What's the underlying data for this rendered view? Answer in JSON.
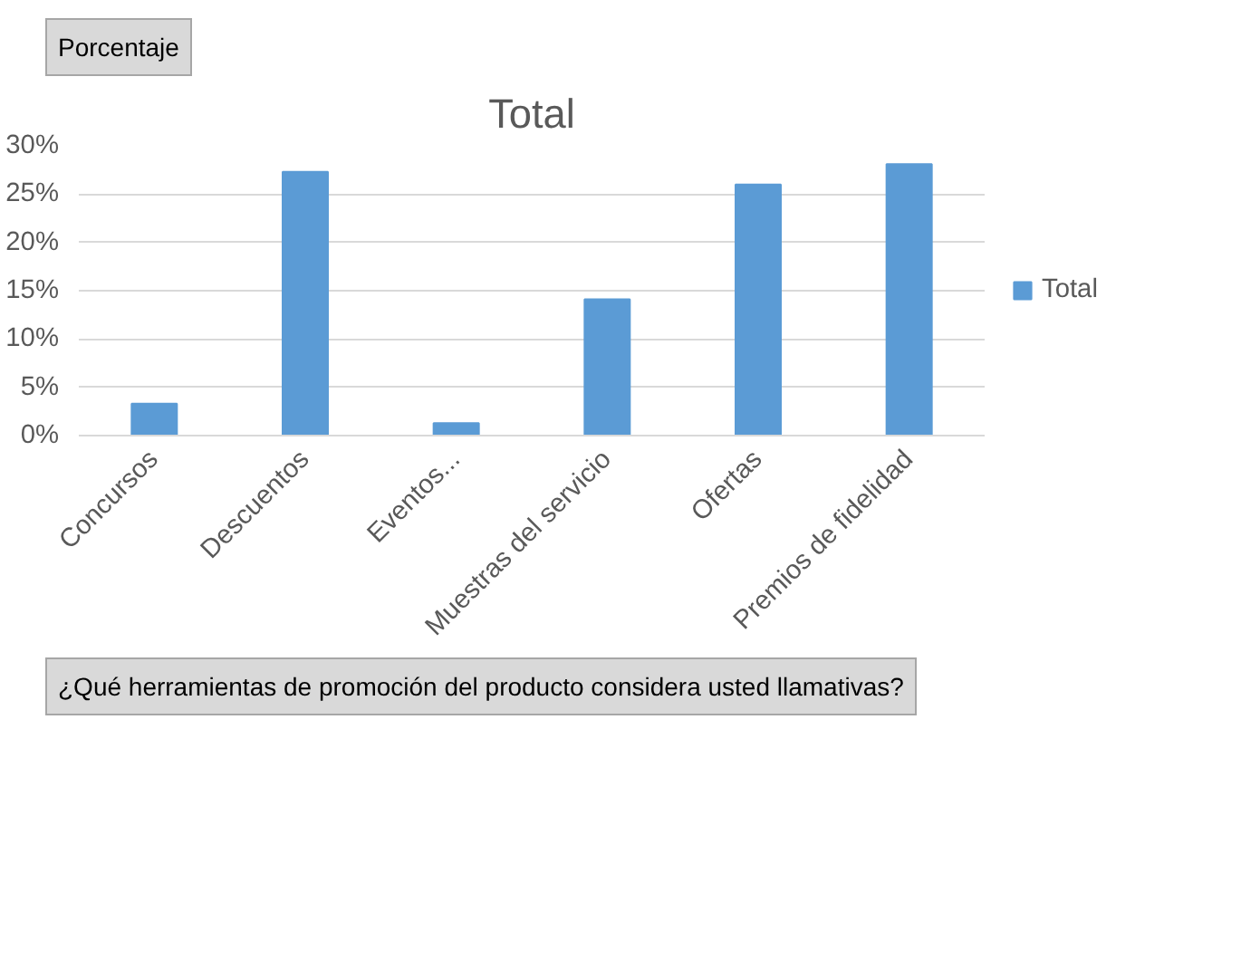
{
  "chart_data": {
    "type": "bar",
    "title": "Total",
    "xlabel": "¿Qué herramientas de promoción del producto considera usted llamativas?",
    "annotations": [
      "Porcentaje"
    ],
    "categories": [
      "Concursos",
      "Descuentos",
      "Eventos...",
      "Muestras del servicio",
      "Ofertas",
      "Premios de fidelidad"
    ],
    "series": [
      {
        "name": "Total",
        "color": "#5b9bd5",
        "values": [
          3.3,
          27.3,
          1.3,
          14.1,
          26.0,
          28.1
        ]
      }
    ],
    "ylim": [
      0,
      30
    ],
    "yticks": [
      {
        "value": 0,
        "label": "0%"
      },
      {
        "value": 5,
        "label": "5%"
      },
      {
        "value": 10,
        "label": "10%"
      },
      {
        "value": 15,
        "label": "15%"
      },
      {
        "value": 20,
        "label": "20%"
      },
      {
        "value": 25,
        "label": "25%"
      },
      {
        "value": 30,
        "label": "30%"
      }
    ],
    "grid": "y",
    "legend": "right"
  }
}
